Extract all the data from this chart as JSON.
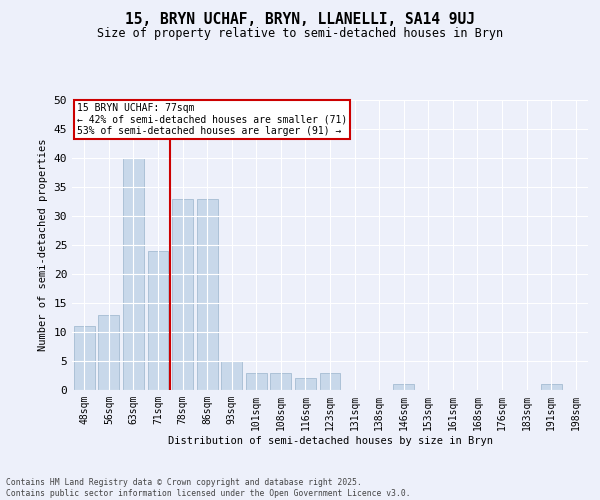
{
  "title": "15, BRYN UCHAF, BRYN, LLANELLI, SA14 9UJ",
  "subtitle": "Size of property relative to semi-detached houses in Bryn",
  "xlabel": "Distribution of semi-detached houses by size in Bryn",
  "ylabel": "Number of semi-detached properties",
  "categories": [
    "48sqm",
    "56sqm",
    "63sqm",
    "71sqm",
    "78sqm",
    "86sqm",
    "93sqm",
    "101sqm",
    "108sqm",
    "116sqm",
    "123sqm",
    "131sqm",
    "138sqm",
    "146sqm",
    "153sqm",
    "161sqm",
    "168sqm",
    "176sqm",
    "183sqm",
    "191sqm",
    "198sqm"
  ],
  "values": [
    11,
    13,
    40,
    24,
    33,
    33,
    5,
    3,
    3,
    2,
    3,
    0,
    0,
    1,
    0,
    0,
    0,
    0,
    0,
    1,
    0
  ],
  "bar_color": "#c8d8ea",
  "bar_edge_color": "#9ab4cc",
  "highlight_line_color": "#cc0000",
  "highlight_line_index": 3.5,
  "annotation_title": "15 BRYN UCHAF: 77sqm",
  "annotation_line1": "← 42% of semi-detached houses are smaller (71)",
  "annotation_line2": "53% of semi-detached houses are larger (91) →",
  "annotation_box_color": "#cc0000",
  "ylim": [
    0,
    50
  ],
  "yticks": [
    0,
    5,
    10,
    15,
    20,
    25,
    30,
    35,
    40,
    45,
    50
  ],
  "background_color": "#edf0fa",
  "grid_color": "#ffffff",
  "footer_line1": "Contains HM Land Registry data © Crown copyright and database right 2025.",
  "footer_line2": "Contains public sector information licensed under the Open Government Licence v3.0."
}
